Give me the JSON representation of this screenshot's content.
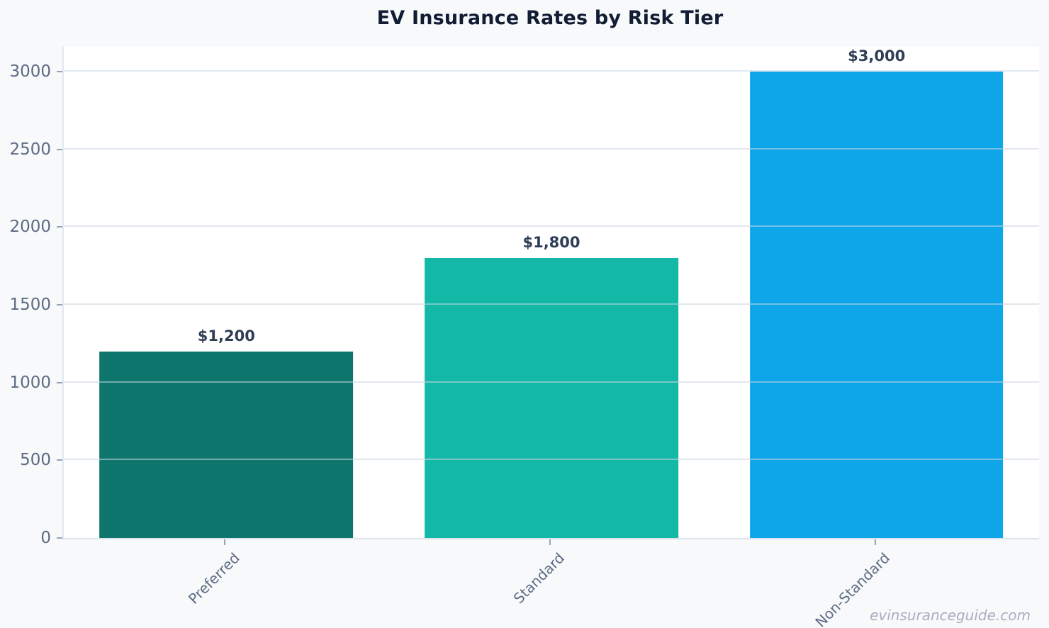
{
  "page": {
    "background": "#f7f9fb",
    "watermark": "evinsuranceguide.com"
  },
  "chart_data": {
    "type": "bar",
    "title": "EV Insurance Rates by Risk Tier",
    "categories": [
      "Preferred",
      "Standard",
      "Non-Standard"
    ],
    "values": [
      1200,
      1800,
      3000
    ],
    "value_labels": [
      "$1,200",
      "$1,800",
      "$3,000"
    ],
    "bar_colors": [
      "#0f766e",
      "#14b8a6",
      "#0ea5e9"
    ],
    "yticks": [
      0,
      500,
      1000,
      1500,
      2000,
      2500,
      3000
    ],
    "ylim": [
      0,
      3160
    ],
    "xlabel": "",
    "ylabel": "",
    "grid": "horizontal-over-bars",
    "legend": "none",
    "colors": {
      "page_bg": "#f7f9fb",
      "plot_bg": "#ffffff",
      "title": "#121c33",
      "tick_label": "#5d6b82",
      "x_label": "#5f6c84",
      "value_label": "#2f3e55",
      "gridline": "#e8edf3",
      "watermark": "#a7aec0"
    }
  }
}
